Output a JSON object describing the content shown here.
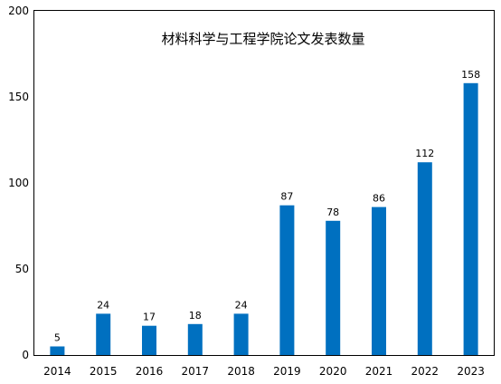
{
  "chart_data": {
    "type": "bar",
    "title": "材料科学与工程学院论文发表数量",
    "xlabel": "",
    "ylabel": "",
    "categories": [
      "2014",
      "2015",
      "2016",
      "2017",
      "2018",
      "2019",
      "2020",
      "2021",
      "2022",
      "2023"
    ],
    "values": [
      5,
      24,
      17,
      18,
      24,
      87,
      78,
      86,
      112,
      158
    ],
    "ylim": [
      0,
      200
    ],
    "yticks": [
      0,
      50,
      100,
      150,
      200
    ],
    "grid": false,
    "legend": "none",
    "bar_color": "#0070C0"
  }
}
